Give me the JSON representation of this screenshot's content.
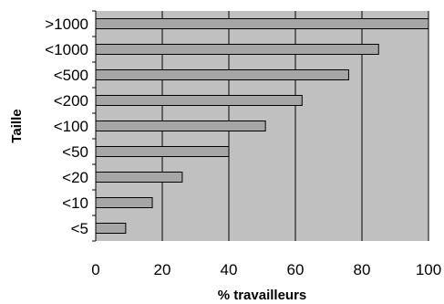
{
  "chart_data": {
    "type": "bar",
    "orientation": "horizontal",
    "categories": [
      ">1000",
      "<1000",
      "<500",
      "<200",
      "<100",
      "<50",
      "<20",
      "<10",
      "<5"
    ],
    "values": [
      100,
      85,
      76,
      62,
      51,
      40,
      26,
      17,
      9
    ],
    "xlabel": "% travailleurs",
    "ylabel": "Taille",
    "xlim": [
      0,
      100
    ],
    "xticks": [
      0,
      20,
      40,
      60,
      80,
      100
    ],
    "grid": "vertical",
    "legend": "none",
    "colors": {
      "plot_background": "#c0c0c0",
      "bar_fill": "#a6a6a6",
      "bar_stroke": "#000000",
      "gridline": "#000000"
    }
  }
}
